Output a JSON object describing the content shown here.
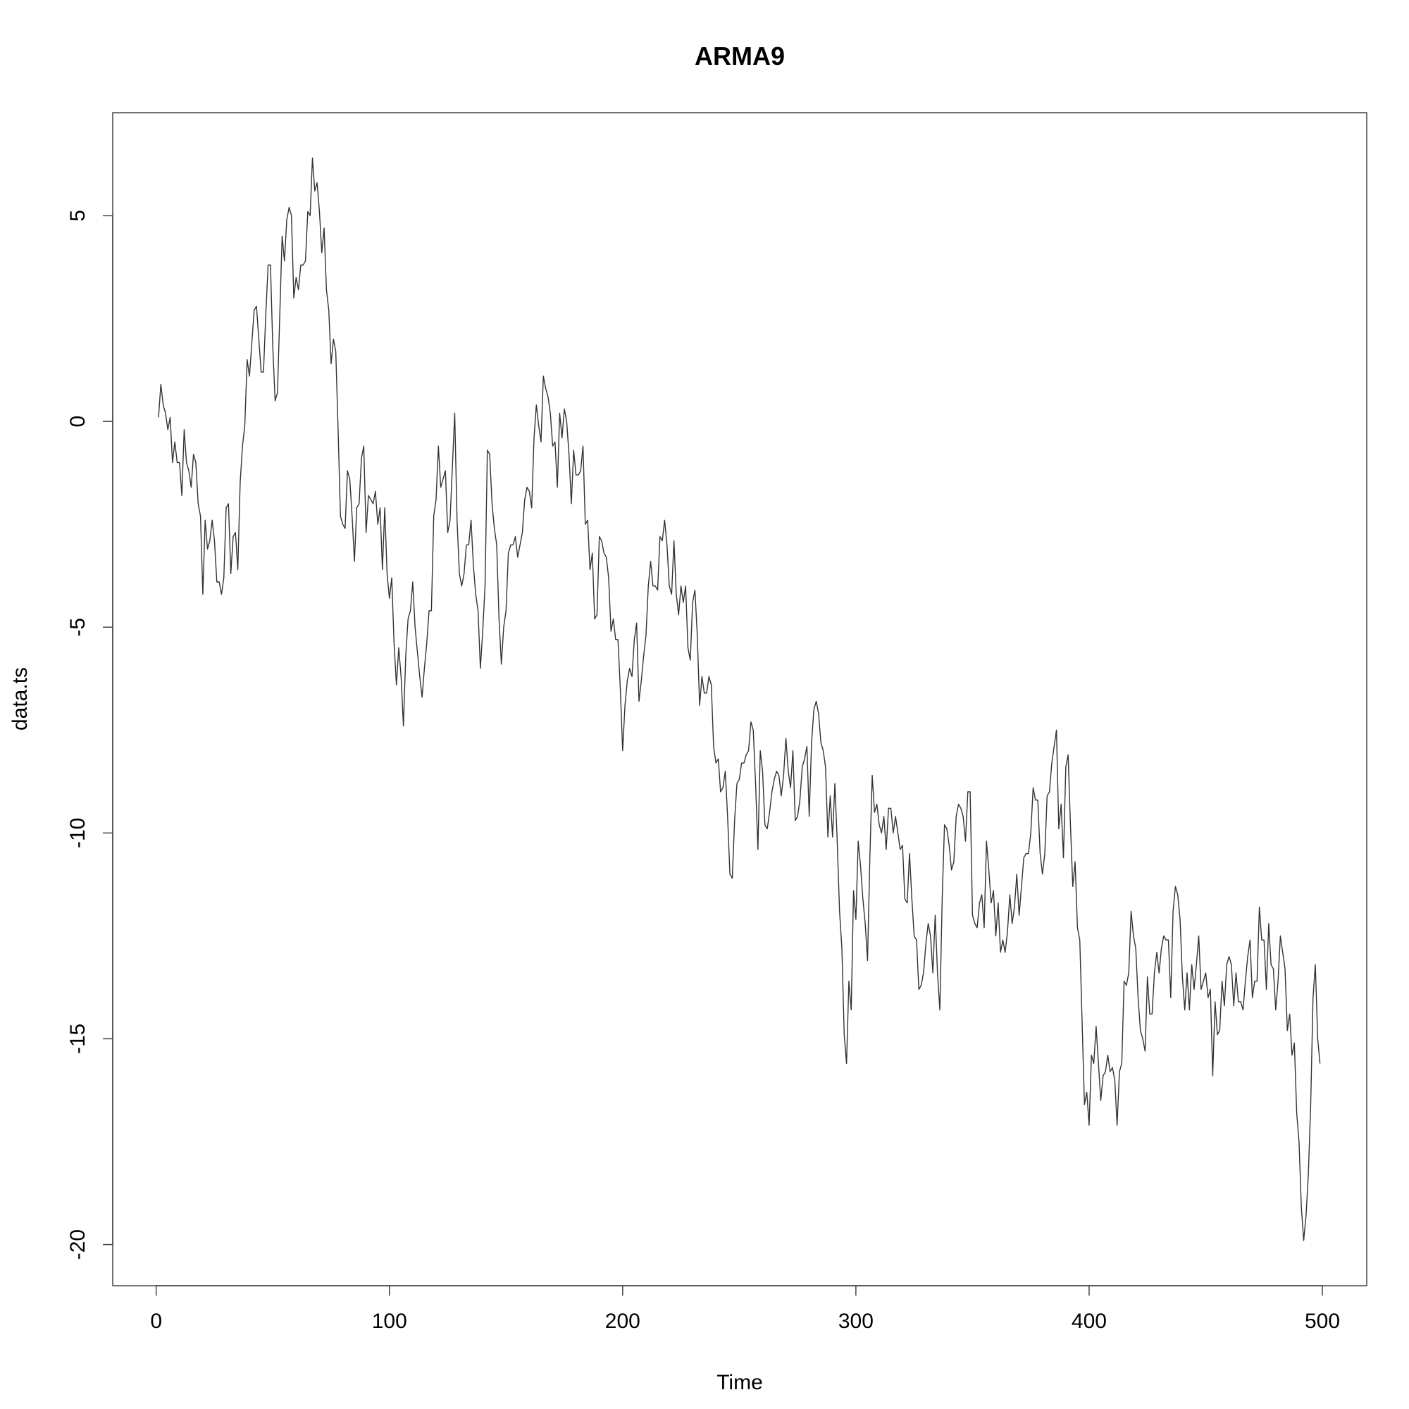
{
  "chart_data": {
    "type": "line",
    "title": "ARMA9",
    "xlabel": "Time",
    "ylabel": "data.ts",
    "xlim": [
      1,
      500
    ],
    "ylim": [
      -21,
      7.5
    ],
    "x_ticks": [
      0,
      100,
      200,
      300,
      400,
      500
    ],
    "y_ticks": [
      5,
      0,
      -5,
      -10,
      -15,
      -20
    ],
    "x_tick_labels": [
      "0",
      "100",
      "200",
      "300",
      "400",
      "500"
    ],
    "y_tick_labels": [
      "5",
      "0",
      "-5",
      "-10",
      "-15",
      "-20"
    ],
    "grid": false,
    "legend": "none",
    "colors": {
      "line": "#333333",
      "frame": "#444444"
    },
    "series": [
      {
        "x_start": 1,
        "x_step": 1,
        "values": [
          0.1,
          0.9,
          0.4,
          0.2,
          -0.2,
          0.1,
          -1.0,
          -0.5,
          -1.0,
          -1.0,
          -1.8,
          -0.2,
          -1.0,
          -1.2,
          -1.6,
          -0.8,
          -1.0,
          -2.0,
          -2.3,
          -4.2,
          -2.4,
          -3.1,
          -2.9,
          -2.4,
          -2.9,
          -3.9,
          -3.9,
          -4.2,
          -3.8,
          -2.1,
          -2.0,
          -3.7,
          -2.8,
          -2.7,
          -3.6,
          -1.5,
          -0.6,
          -0.1,
          1.5,
          1.1,
          1.9,
          2.7,
          2.8,
          2.0,
          1.2,
          1.2,
          2.6,
          3.8,
          3.8,
          1.8,
          0.5,
          0.7,
          2.6,
          4.5,
          3.9,
          4.9,
          5.2,
          5.0,
          3.0,
          3.5,
          3.2,
          3.8,
          3.8,
          3.9,
          5.1,
          5.0,
          6.4,
          5.6,
          5.8,
          5.1,
          4.1,
          4.7,
          3.2,
          2.7,
          1.4,
          2.0,
          1.7,
          -0.2,
          -2.3,
          -2.5,
          -2.6,
          -1.2,
          -1.4,
          -2.3,
          -3.4,
          -2.1,
          -2.0,
          -0.9,
          -0.6,
          -2.7,
          -1.8,
          -1.9,
          -2.0,
          -1.7,
          -2.5,
          -2.1,
          -3.6,
          -2.1,
          -3.7,
          -4.3,
          -3.8,
          -5.4,
          -6.4,
          -5.5,
          -6.2,
          -7.4,
          -5.7,
          -4.8,
          -4.6,
          -3.9,
          -5.0,
          -5.6,
          -6.2,
          -6.7,
          -6.0,
          -5.4,
          -4.6,
          -4.6,
          -2.3,
          -1.9,
          -0.6,
          -1.6,
          -1.4,
          -1.2,
          -2.7,
          -2.4,
          -1.1,
          0.2,
          -2.4,
          -3.7,
          -4.0,
          -3.7,
          -3.0,
          -3.0,
          -2.4,
          -3.5,
          -4.2,
          -4.6,
          -6.0,
          -5.1,
          -4.0,
          -0.7,
          -0.8,
          -2.0,
          -2.6,
          -3.0,
          -4.8,
          -5.9,
          -5.0,
          -4.6,
          -3.2,
          -3.0,
          -3.0,
          -2.8,
          -3.3,
          -3.0,
          -2.7,
          -1.9,
          -1.6,
          -1.7,
          -2.1,
          -0.4,
          0.4,
          -0.1,
          -0.5,
          1.1,
          0.8,
          0.6,
          0.2,
          -0.6,
          -0.5,
          -1.6,
          0.2,
          -0.4,
          0.3,
          0.0,
          -0.8,
          -2.0,
          -0.7,
          -1.3,
          -1.3,
          -1.2,
          -0.6,
          -2.5,
          -2.4,
          -3.6,
          -3.2,
          -4.8,
          -4.7,
          -2.8,
          -2.9,
          -3.2,
          -3.3,
          -3.8,
          -5.1,
          -4.8,
          -5.3,
          -5.3,
          -6.5,
          -8.0,
          -6.9,
          -6.3,
          -6.0,
          -6.2,
          -5.3,
          -4.9,
          -6.8,
          -6.3,
          -5.7,
          -5.2,
          -4.0,
          -3.4,
          -4.0,
          -4.0,
          -4.1,
          -2.8,
          -2.9,
          -2.4,
          -3.0,
          -4.0,
          -4.2,
          -2.9,
          -4.2,
          -4.7,
          -4.0,
          -4.4,
          -4.0,
          -5.5,
          -5.8,
          -4.4,
          -4.1,
          -5.2,
          -6.9,
          -6.2,
          -6.6,
          -6.6,
          -6.2,
          -6.4,
          -7.9,
          -8.3,
          -8.2,
          -9.0,
          -8.9,
          -8.5,
          -9.6,
          -11.0,
          -11.1,
          -9.7,
          -8.8,
          -8.7,
          -8.3,
          -8.3,
          -8.1,
          -8.0,
          -7.3,
          -7.5,
          -8.8,
          -10.4,
          -8.0,
          -8.5,
          -9.8,
          -9.9,
          -9.5,
          -9.0,
          -8.7,
          -8.5,
          -8.6,
          -9.1,
          -8.6,
          -7.7,
          -8.5,
          -8.9,
          -8.0,
          -9.7,
          -9.6,
          -9.2,
          -8.4,
          -8.2,
          -7.9,
          -9.6,
          -7.8,
          -7.0,
          -6.8,
          -7.1,
          -7.8,
          -8.0,
          -8.4,
          -10.1,
          -9.1,
          -10.1,
          -8.8,
          -10.2,
          -11.9,
          -12.8,
          -14.9,
          -15.6,
          -13.6,
          -14.3,
          -11.4,
          -12.1,
          -10.2,
          -10.8,
          -11.6,
          -12.2,
          -13.1,
          -10.6,
          -8.6,
          -9.5,
          -9.3,
          -9.8,
          -10.0,
          -9.6,
          -10.4,
          -9.4,
          -9.4,
          -10.0,
          -9.6,
          -10.0,
          -10.4,
          -10.3,
          -11.6,
          -11.7,
          -10.5,
          -11.6,
          -12.5,
          -12.6,
          -13.8,
          -13.7,
          -13.4,
          -12.7,
          -12.2,
          -12.5,
          -13.4,
          -12.0,
          -13.4,
          -14.3,
          -11.6,
          -9.8,
          -9.9,
          -10.3,
          -10.9,
          -10.7,
          -9.6,
          -9.3,
          -9.4,
          -9.6,
          -10.2,
          -9.0,
          -9.0,
          -12.0,
          -12.2,
          -12.3,
          -11.7,
          -11.5,
          -12.3,
          -10.2,
          -10.9,
          -11.7,
          -11.4,
          -12.5,
          -11.7,
          -12.9,
          -12.6,
          -12.9,
          -12.4,
          -11.5,
          -12.2,
          -11.8,
          -11.0,
          -12.0,
          -11.3,
          -10.6,
          -10.5,
          -10.5,
          -10.0,
          -8.9,
          -9.2,
          -9.2,
          -10.5,
          -11.0,
          -10.5,
          -9.1,
          -9.0,
          -8.3,
          -7.9,
          -7.5,
          -9.9,
          -9.3,
          -10.6,
          -8.4,
          -8.1,
          -9.8,
          -11.3,
          -10.7,
          -12.3,
          -12.6,
          -14.6,
          -16.6,
          -16.3,
          -17.1,
          -15.4,
          -15.6,
          -14.7,
          -15.6,
          -16.5,
          -15.9,
          -15.8,
          -15.4,
          -15.8,
          -15.7,
          -16.0,
          -17.1,
          -15.8,
          -15.6,
          -13.6,
          -13.7,
          -13.4,
          -11.9,
          -12.5,
          -12.8,
          -14.0,
          -14.8,
          -15.0,
          -15.3,
          -13.5,
          -14.4,
          -14.4,
          -13.4,
          -12.9,
          -13.4,
          -12.8,
          -12.5,
          -12.6,
          -12.6,
          -14.0,
          -11.9,
          -11.3,
          -11.5,
          -12.1,
          -13.5,
          -14.3,
          -13.4,
          -14.3,
          -13.2,
          -13.8,
          -13.2,
          -12.5,
          -13.8,
          -13.6,
          -13.4,
          -14.0,
          -13.8,
          -15.9,
          -14.1,
          -14.9,
          -14.8,
          -13.6,
          -14.2,
          -13.2,
          -13.0,
          -13.2,
          -14.2,
          -13.4,
          -14.1,
          -14.1,
          -14.3,
          -13.6,
          -13.0,
          -12.6,
          -14.0,
          -13.6,
          -13.6,
          -11.8,
          -12.6,
          -12.6,
          -13.8,
          -12.2,
          -13.2,
          -13.3,
          -14.3,
          -13.6,
          -12.5,
          -12.9,
          -13.3,
          -14.8,
          -14.4,
          -15.4,
          -15.1,
          -16.8,
          -17.5,
          -19.1,
          -19.9,
          -19.3,
          -18.3,
          -16.6,
          -14.0,
          -13.2,
          -15.0,
          -15.6
        ]
      }
    ]
  }
}
